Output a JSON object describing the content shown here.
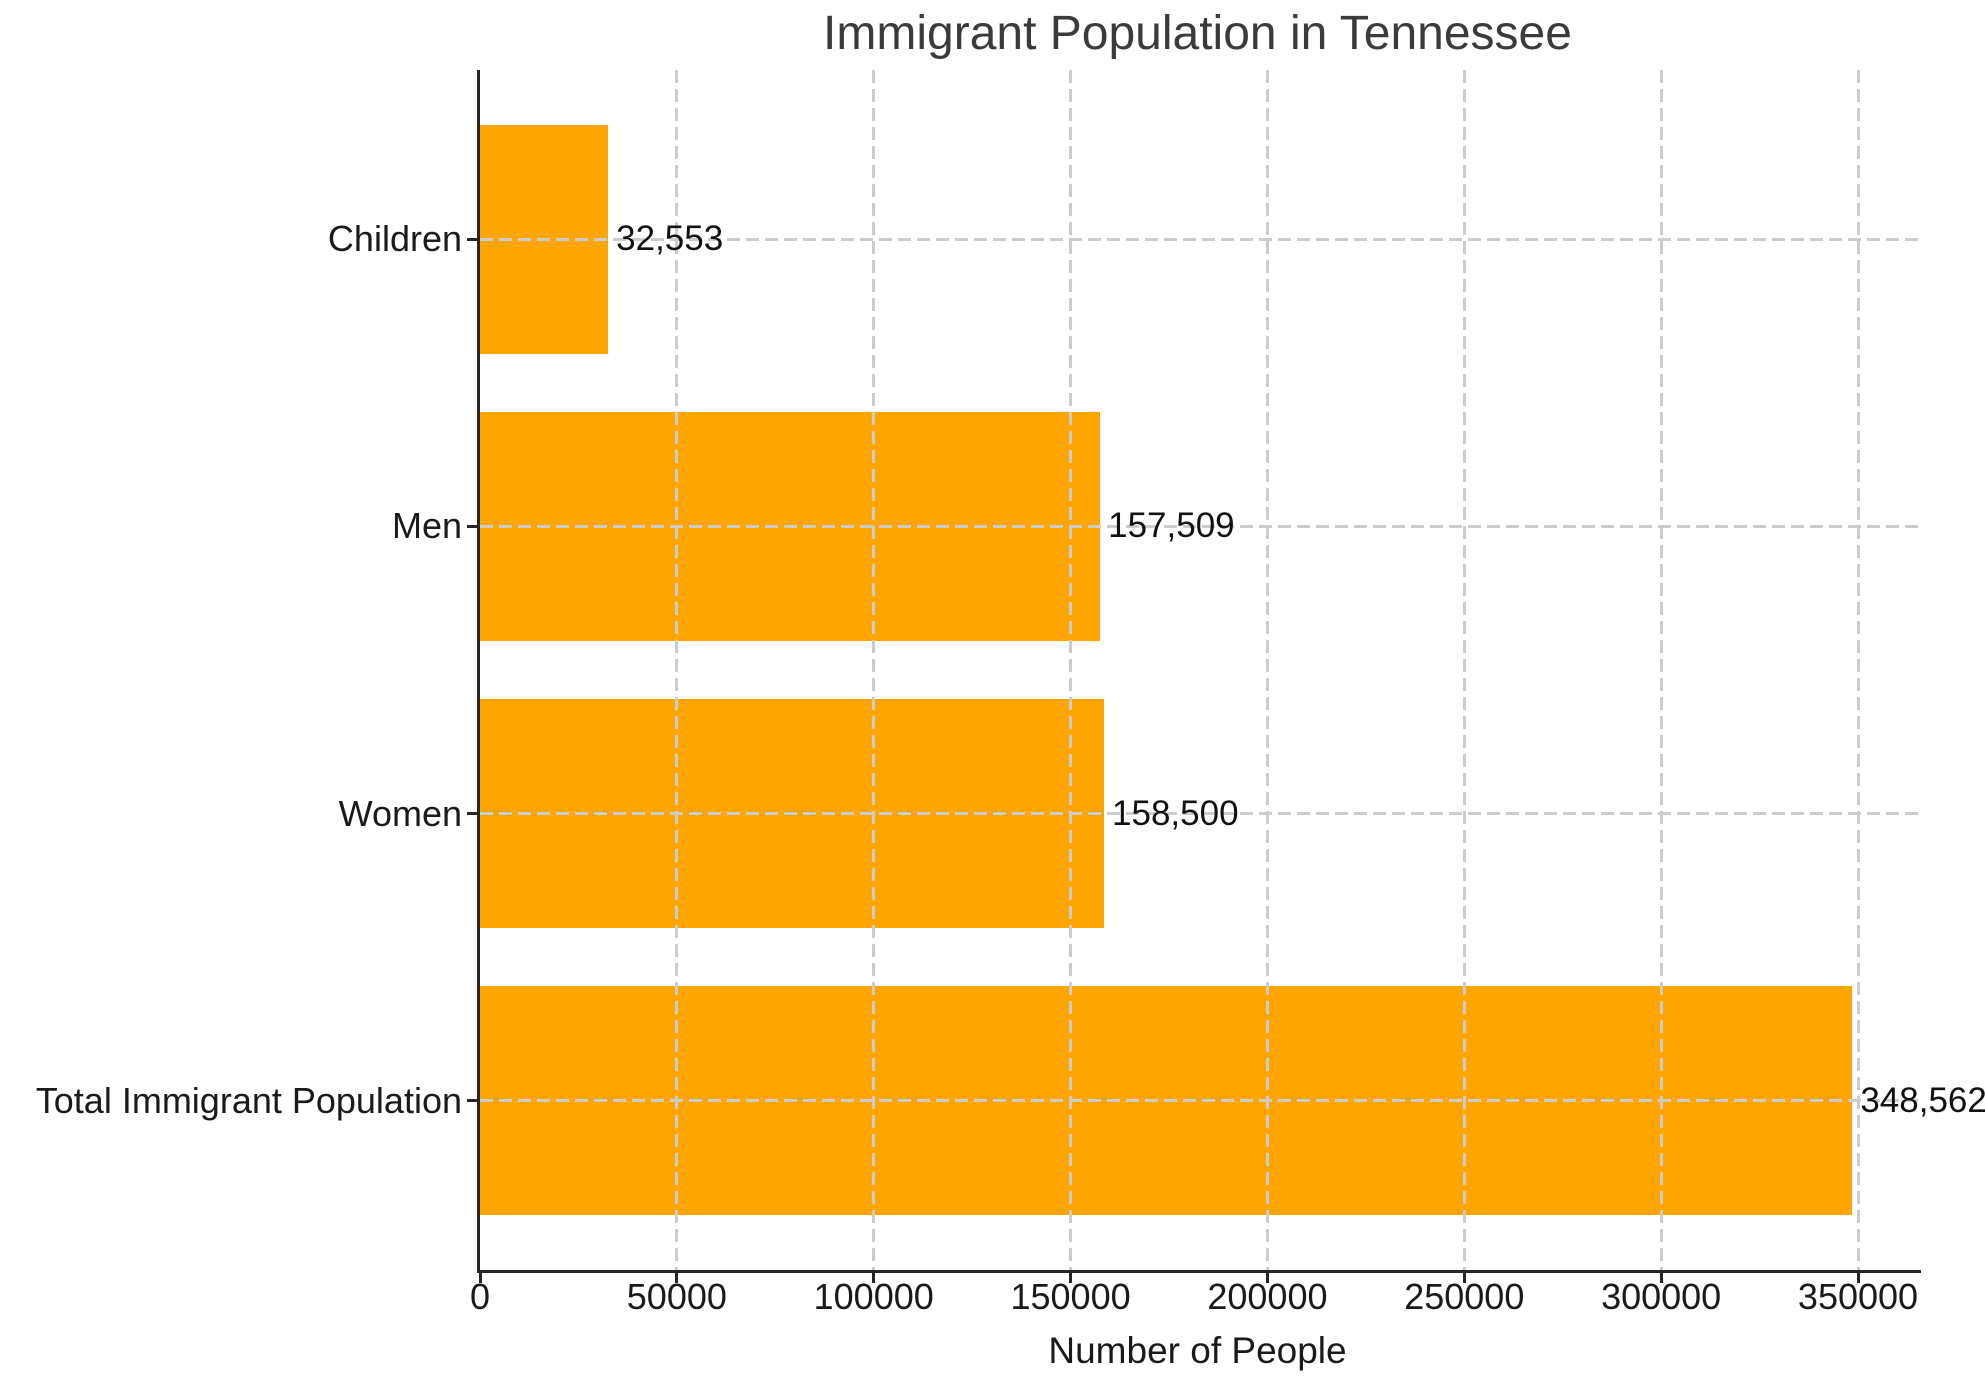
{
  "chart_data": {
    "type": "bar",
    "orientation": "horizontal",
    "title": "Immigrant Population in Tennessee",
    "xlabel": "Number of People",
    "ylabel": "",
    "categories": [
      "Children",
      "Men",
      "Women",
      "Total Immigrant Population"
    ],
    "categories_order": "top-to-bottom",
    "values": [
      32553,
      157509,
      158500,
      348562
    ],
    "value_labels": [
      "32,553",
      "157,509",
      "158,500",
      "348,562"
    ],
    "xlim": [
      0,
      366000
    ],
    "ylim": [
      -0.59,
      3.59
    ],
    "xticks": [
      0,
      50000,
      100000,
      150000,
      200000,
      250000,
      300000,
      350000
    ],
    "xtick_labels": [
      "0",
      "50000",
      "100000",
      "150000",
      "200000",
      "250000",
      "300000",
      "350000"
    ],
    "bar_color": "#FFA500",
    "bar_height": 0.8,
    "grid": true,
    "grid_style": "dashed",
    "grid_color": "#cccccc",
    "axis_color": "#262626",
    "text_color": "#1a1a1a",
    "title_color": "#3b3b3b",
    "background": "#ffffff",
    "legend": "none"
  }
}
